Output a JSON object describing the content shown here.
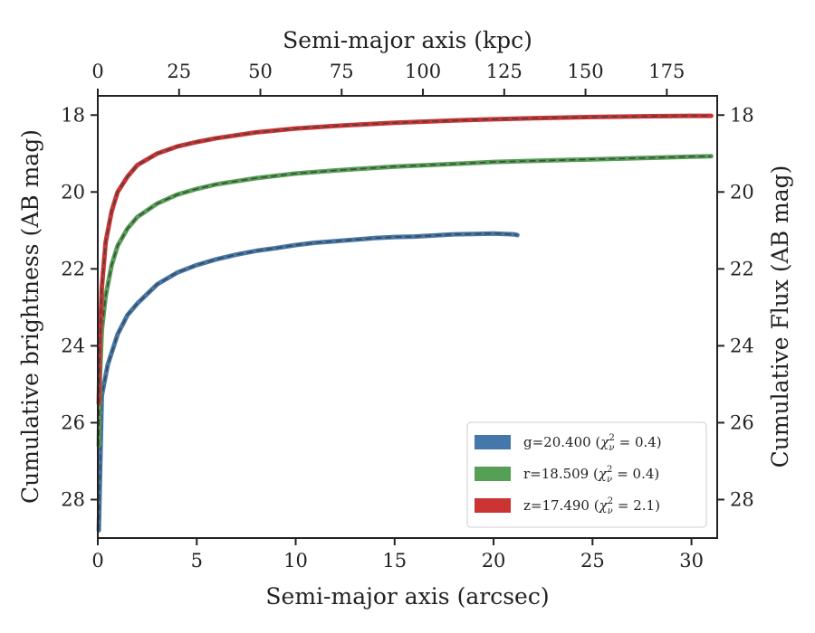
{
  "chart_data": {
    "type": "line",
    "xlabel": "Semi-major axis (arcsec)",
    "ylabel": "Cumulative brightness (AB mag)",
    "top_xlabel": "Semi-major axis (kpc)",
    "right_ylabel": "Cumulative Flux (AB mag)",
    "xlim": [
      0,
      31.3
    ],
    "ylim": [
      29.0,
      17.5
    ],
    "top_xlim": [
      0,
      190.5
    ],
    "y_inverted": true,
    "x_ticks": [
      0,
      5,
      10,
      15,
      20,
      25,
      30
    ],
    "x_tick_labels": [
      "0",
      "5",
      "10",
      "15",
      "20",
      "25",
      "30"
    ],
    "y_ticks": [
      18,
      20,
      22,
      24,
      26,
      28
    ],
    "y_tick_labels": [
      "18",
      "20",
      "22",
      "24",
      "26",
      "28"
    ],
    "top_x_ticks": [
      0,
      25,
      50,
      75,
      100,
      125,
      150,
      175
    ],
    "top_x_tick_labels": [
      "0",
      "25",
      "50",
      "75",
      "100",
      "125",
      "150",
      "175"
    ],
    "legend_position": "lower-right",
    "grid": false,
    "series": [
      {
        "name": "g=20.400",
        "chi": "0.4",
        "color": "#4477aa",
        "x": [
          0.05,
          0.2,
          0.5,
          1,
          1.5,
          2,
          3,
          4,
          5,
          6,
          7,
          8,
          9,
          10,
          11,
          12,
          13,
          14,
          15,
          16,
          17,
          18,
          19,
          20,
          21,
          21.2
        ],
        "y": [
          28.8,
          25.3,
          24.5,
          23.7,
          23.2,
          22.9,
          22.4,
          22.1,
          21.9,
          21.75,
          21.63,
          21.53,
          21.46,
          21.38,
          21.32,
          21.28,
          21.24,
          21.2,
          21.17,
          21.16,
          21.13,
          21.1,
          21.09,
          21.08,
          21.1,
          21.12
        ]
      },
      {
        "name": "r=18.509",
        "chi": "0.4",
        "color": "#55a055",
        "x": [
          0.05,
          0.1,
          0.2,
          0.4,
          0.7,
          1,
          1.5,
          2,
          3,
          4,
          5,
          6,
          8,
          10,
          12,
          15,
          18,
          20,
          22,
          25,
          28,
          30,
          31
        ],
        "y": [
          26.6,
          24.9,
          23.6,
          22.7,
          21.9,
          21.4,
          20.95,
          20.65,
          20.3,
          20.07,
          19.92,
          19.8,
          19.64,
          19.52,
          19.44,
          19.34,
          19.27,
          19.22,
          19.19,
          19.15,
          19.11,
          19.08,
          19.07
        ]
      },
      {
        "name": "z=17.490",
        "chi": "2.1",
        "color": "#cc3333",
        "x": [
          0.05,
          0.1,
          0.2,
          0.4,
          0.7,
          1,
          1.5,
          2,
          3,
          4,
          5,
          6,
          8,
          10,
          12,
          15,
          18,
          20,
          22,
          25,
          28,
          30,
          31
        ],
        "y": [
          25.5,
          24.0,
          22.5,
          21.3,
          20.5,
          20.0,
          19.6,
          19.3,
          19.0,
          18.82,
          18.7,
          18.6,
          18.45,
          18.35,
          18.28,
          18.2,
          18.14,
          18.11,
          18.08,
          18.05,
          18.03,
          18.02,
          18.02
        ]
      }
    ]
  }
}
